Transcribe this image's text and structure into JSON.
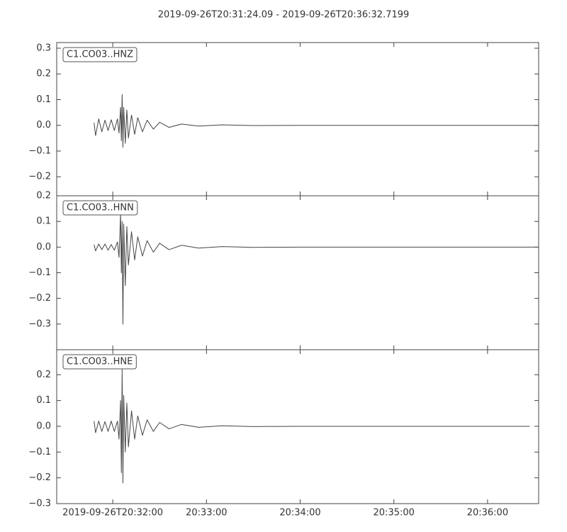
{
  "chart_data": [
    {
      "type": "line",
      "title": "2019-09-26T20:31:24.09  -  2019-09-26T20:36:32.7199",
      "xlim": [
        "2019-09-26T20:31:24.09",
        "2019-09-26T20:36:32.7199"
      ],
      "ylim": [
        -0.274,
        0.322
      ],
      "yticks": [
        {
          "value": -0.2,
          "label": "−0.2"
        },
        {
          "value": -0.1,
          "label": "−0.1"
        },
        {
          "value": 0,
          "label": "0.0"
        },
        0.1,
        0.2,
        0.3
      ],
      "x": [
        "2019-09-26T20:31:48",
        "2019-09-26T20:31:49",
        "2019-09-26T20:31:51",
        "2019-09-26T20:31:53",
        "2019-09-26T20:31:55",
        "2019-09-26T20:31:57",
        "2019-09-26T20:31:59",
        "2019-09-26T20:32:01",
        "2019-09-26T20:32:03",
        "2019-09-26T20:32:04",
        "2019-09-26T20:32:05",
        "2019-09-26T20:32:05.5",
        "2019-09-26T20:32:06",
        "2019-09-26T20:32:06.5",
        "2019-09-26T20:32:07",
        "2019-09-26T20:32:08",
        "2019-09-26T20:32:09",
        "2019-09-26T20:32:10",
        "2019-09-26T20:32:12",
        "2019-09-26T20:32:14",
        "2019-09-26T20:32:16",
        "2019-09-26T20:32:19",
        "2019-09-26T20:32:22",
        "2019-09-26T20:32:26",
        "2019-09-26T20:32:30",
        "2019-09-26T20:32:36",
        "2019-09-26T20:32:44",
        "2019-09-26T20:32:55",
        "2019-09-26T20:33:10",
        "2019-09-26T20:33:30",
        "2019-09-26T20:34:00",
        "2019-09-26T20:36:32"
      ],
      "series": [
        {
          "name": "C1.CO03..HNZ",
          "color": "#444444",
          "values": [
            0.01,
            -0.04,
            0.025,
            -0.025,
            0.02,
            -0.02,
            0.022,
            -0.02,
            0.025,
            -0.03,
            0.07,
            -0.06,
            0.12,
            -0.085,
            0.07,
            -0.07,
            0.06,
            -0.05,
            0.04,
            -0.035,
            0.03,
            -0.025,
            0.02,
            -0.015,
            0.012,
            -0.008,
            0.005,
            -0.003,
            0.002,
            -0.001,
            0,
            0
          ]
        }
      ]
    },
    {
      "type": "line",
      "xlim": [
        "2019-09-26T20:31:24.09",
        "2019-09-26T20:36:32.7199"
      ],
      "ylim": [
        -0.4,
        0.2
      ],
      "yticks": [
        {
          "value": -0.3,
          "label": "−0.3"
        },
        {
          "value": -0.2,
          "label": "−0.2"
        },
        {
          "value": -0.1,
          "label": "−0.1"
        },
        {
          "value": 0,
          "label": "0.0"
        },
        0.1,
        0.2
      ],
      "x": [
        "2019-09-26T20:31:48",
        "2019-09-26T20:31:49",
        "2019-09-26T20:31:51",
        "2019-09-26T20:31:53",
        "2019-09-26T20:31:55",
        "2019-09-26T20:31:57",
        "2019-09-26T20:31:59",
        "2019-09-26T20:32:01",
        "2019-09-26T20:32:03",
        "2019-09-26T20:32:04",
        "2019-09-26T20:32:05",
        "2019-09-26T20:32:05.5",
        "2019-09-26T20:32:06",
        "2019-09-26T20:32:06.5",
        "2019-09-26T20:32:07",
        "2019-09-26T20:32:08",
        "2019-09-26T20:32:09",
        "2019-09-26T20:32:10",
        "2019-09-26T20:32:12",
        "2019-09-26T20:32:14",
        "2019-09-26T20:32:16",
        "2019-09-26T20:32:19",
        "2019-09-26T20:32:22",
        "2019-09-26T20:32:26",
        "2019-09-26T20:32:30",
        "2019-09-26T20:32:36",
        "2019-09-26T20:32:44",
        "2019-09-26T20:32:55",
        "2019-09-26T20:33:10",
        "2019-09-26T20:33:30",
        "2019-09-26T20:34:00",
        "2019-09-26T20:36:32"
      ],
      "series": [
        {
          "name": "C1.CO03..HNN",
          "color": "#444444",
          "values": [
            0.01,
            -0.015,
            0.012,
            -0.01,
            0.012,
            -0.012,
            0.01,
            -0.012,
            0.02,
            -0.04,
            0.13,
            -0.1,
            0.1,
            -0.3,
            0.09,
            -0.15,
            0.08,
            -0.07,
            0.06,
            -0.05,
            0.04,
            -0.035,
            0.025,
            -0.02,
            0.015,
            -0.01,
            0.007,
            -0.004,
            0.002,
            -0.001,
            0,
            0
          ]
        }
      ]
    },
    {
      "type": "line",
      "xlim": [
        "2019-09-26T20:31:24.09",
        "2019-09-26T20:36:32.7199"
      ],
      "ylim": [
        -0.3,
        0.297
      ],
      "yticks": [
        {
          "value": -0.3,
          "label": "−0.3"
        },
        {
          "value": -0.2,
          "label": "−0.2"
        },
        {
          "value": -0.1,
          "label": "−0.1"
        },
        {
          "value": 0,
          "label": "0.0"
        },
        0.1,
        0.2
      ],
      "xticks": [
        "2019-09-26T20:32:00",
        {
          "value": "2019-09-26T20:33:00",
          "label": "20:33:00"
        },
        {
          "value": "2019-09-26T20:34:00",
          "label": "20:34:00"
        },
        {
          "value": "2019-09-26T20:35:00",
          "label": "20:35:00"
        },
        {
          "value": "2019-09-26T20:36:00",
          "label": "20:36:00"
        }
      ],
      "x": [
        "2019-09-26T20:31:48",
        "2019-09-26T20:31:49",
        "2019-09-26T20:31:51",
        "2019-09-26T20:31:53",
        "2019-09-26T20:31:55",
        "2019-09-26T20:31:57",
        "2019-09-26T20:31:59",
        "2019-09-26T20:32:01",
        "2019-09-26T20:32:03",
        "2019-09-26T20:32:04",
        "2019-09-26T20:32:05",
        "2019-09-26T20:32:05.5",
        "2019-09-26T20:32:06",
        "2019-09-26T20:32:06.5",
        "2019-09-26T20:32:07",
        "2019-09-26T20:32:08",
        "2019-09-26T20:32:09",
        "2019-09-26T20:32:10",
        "2019-09-26T20:32:12",
        "2019-09-26T20:32:14",
        "2019-09-26T20:32:16",
        "2019-09-26T20:32:19",
        "2019-09-26T20:32:22",
        "2019-09-26T20:32:26",
        "2019-09-26T20:32:30",
        "2019-09-26T20:32:36",
        "2019-09-26T20:32:44",
        "2019-09-26T20:32:55",
        "2019-09-26T20:33:10",
        "2019-09-26T20:33:30",
        "2019-09-26T20:34:00",
        "2019-09-26T20:36:27"
      ],
      "series": [
        {
          "name": "C1.CO03..HNE",
          "color": "#444444",
          "values": [
            0.02,
            -0.025,
            0.02,
            -0.02,
            0.018,
            -0.02,
            0.02,
            -0.02,
            0.02,
            -0.05,
            0.1,
            -0.18,
            0.22,
            -0.22,
            0.12,
            -0.1,
            0.09,
            -0.08,
            0.06,
            -0.05,
            0.04,
            -0.035,
            0.025,
            -0.02,
            0.015,
            -0.01,
            0.007,
            -0.004,
            0.002,
            -0.001,
            0,
            0
          ]
        }
      ]
    }
  ]
}
